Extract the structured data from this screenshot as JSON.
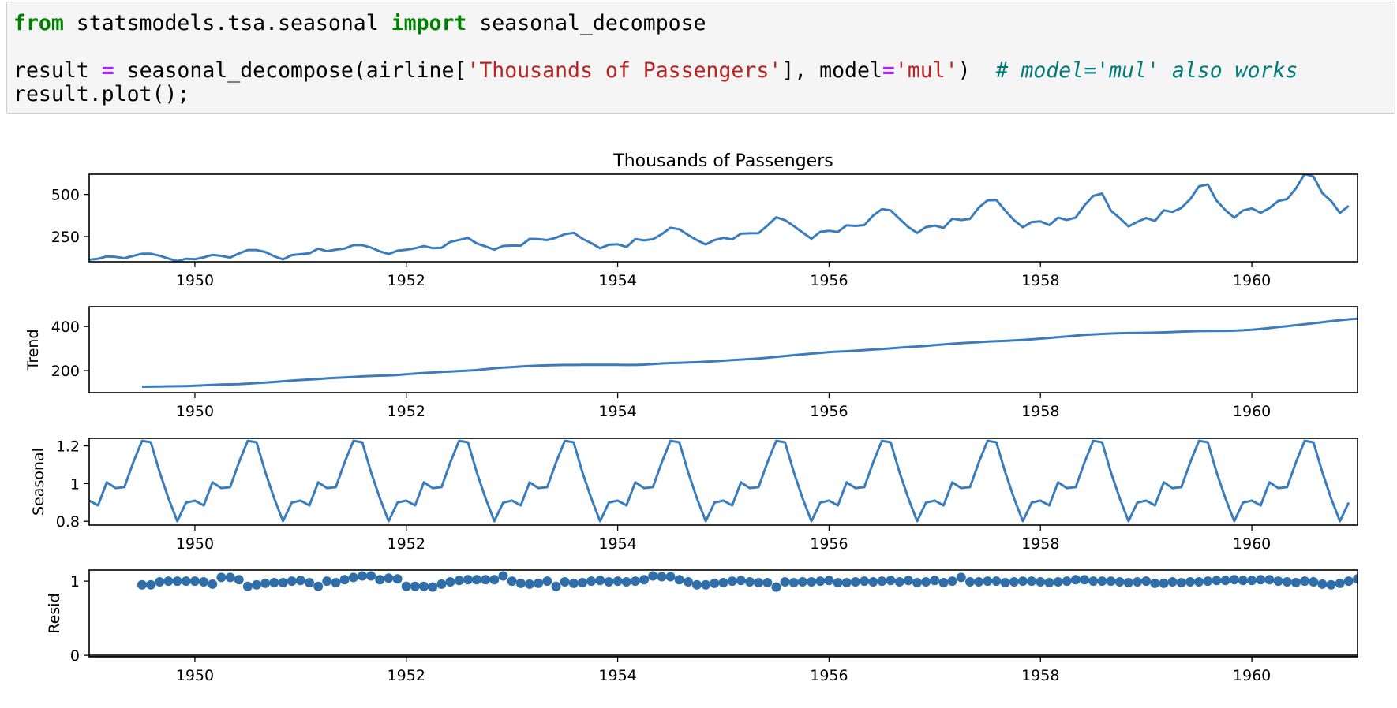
{
  "code": {
    "line1": {
      "kw1": "from",
      "t1": " statsmodels.tsa.seasonal ",
      "kw2": "import",
      "t2": " seasonal_decompose"
    },
    "line3": {
      "t1": "result ",
      "op1": "=",
      "t2": " seasonal_decompose(airline[",
      "s1": "'Thousands of Passengers'",
      "t3": "], model",
      "op2": "=",
      "s2": "'mul'",
      "t4": ")  ",
      "cmt": "# model='mul' also works"
    },
    "line4": {
      "t1": "result.plot();"
    }
  },
  "colors": {
    "line": "#3a7dbf",
    "dot": "#2f6ea8",
    "axis": "#000000"
  },
  "chart_data": [
    {
      "type": "line",
      "title": "Thousands of Passengers",
      "ylabel": "",
      "xlim": [
        1949.0,
        1961.0
      ],
      "ylim": [
        100,
        620
      ],
      "yticks": [
        250,
        500
      ],
      "xticks": [
        1950,
        1952,
        1954,
        1956,
        1958,
        1960
      ],
      "x_start": 1949.0,
      "x_step": 0.083333,
      "values": [
        112,
        118,
        132,
        129,
        121,
        135,
        148,
        148,
        136,
        119,
        104,
        118,
        115,
        126,
        141,
        135,
        125,
        149,
        170,
        170,
        158,
        133,
        114,
        140,
        145,
        150,
        178,
        163,
        172,
        178,
        199,
        199,
        184,
        162,
        146,
        166,
        171,
        180,
        193,
        181,
        183,
        218,
        230,
        242,
        209,
        191,
        172,
        194,
        196,
        196,
        236,
        235,
        229,
        243,
        264,
        272,
        237,
        211,
        180,
        201,
        204,
        188,
        235,
        227,
        234,
        264,
        302,
        293,
        259,
        229,
        203,
        229,
        242,
        233,
        267,
        269,
        270,
        315,
        364,
        347,
        312,
        274,
        237,
        278,
        284,
        277,
        317,
        313,
        318,
        374,
        413,
        405,
        355,
        306,
        271,
        306,
        315,
        301,
        356,
        348,
        355,
        422,
        465,
        467,
        404,
        347,
        305,
        336,
        340,
        318,
        362,
        348,
        363,
        435,
        491,
        505,
        404,
        359,
        310,
        337,
        360,
        342,
        406,
        396,
        420,
        472,
        548,
        559,
        463,
        407,
        362,
        405,
        417,
        391,
        419,
        461,
        472,
        535,
        622,
        606,
        508,
        461,
        390,
        432
      ]
    },
    {
      "type": "line",
      "title": "",
      "ylabel": "Trend",
      "xlim": [
        1949.0,
        1961.0
      ],
      "ylim": [
        100,
        490
      ],
      "yticks": [
        200,
        400
      ],
      "xticks": [
        1950,
        1952,
        1954,
        1956,
        1958,
        1960
      ],
      "x_start": 1949.5,
      "x_step": 0.083333,
      "values": [
        126.79,
        127.25,
        127.96,
        128.58,
        129.0,
        129.75,
        131.25,
        133.08,
        134.92,
        136.42,
        137.42,
        138.75,
        140.92,
        143.17,
        145.71,
        148.42,
        151.54,
        154.71,
        157.12,
        159.54,
        161.83,
        164.79,
        167.25,
        168.96,
        171.25,
        173.58,
        175.46,
        176.83,
        178.04,
        180.17,
        183.12,
        186.21,
        189.04,
        191.29,
        193.58,
        195.83,
        198.04,
        199.75,
        202.21,
        206.25,
        210.42,
        213.38,
        215.83,
        218.46,
        220.92,
        222.42,
        223.62,
        224.92,
        225.5,
        225.67,
        226.0,
        226.25,
        226.38,
        226.29,
        226.04,
        225.67,
        225.5,
        226.96,
        229.62,
        232.5,
        234.17,
        235.42,
        236.75,
        238.21,
        240.38,
        242.5,
        245.0,
        247.5,
        250.0,
        252.5,
        255.0,
        258.17,
        262.29,
        266.17,
        270.04,
        273.38,
        277.12,
        280.38,
        283.83,
        286.21,
        287.71,
        290.12,
        292.92,
        295.25,
        297.79,
        300.83,
        304.0,
        306.42,
        309.17,
        312.25,
        315.42,
        318.67,
        321.75,
        324.25,
        326.88,
        329.04,
        331.83,
        333.29,
        334.83,
        336.75,
        339.25,
        341.92,
        344.92,
        348.42,
        352.04,
        354.88,
        358.75,
        361.96,
        364.29,
        366.71,
        368.46,
        369.79,
        370.62,
        371.17,
        371.5,
        372.17,
        373.58,
        375.29,
        376.92,
        377.96,
        379.5,
        380.21,
        380.46,
        380.67,
        381.29,
        383.08,
        385.5,
        389.08,
        393.21,
        397.75,
        401.29,
        405.83,
        410.38,
        414.96,
        419.58,
        424.25,
        428.71,
        432.62,
        435.75,
        439.08,
        442.88,
        447.88,
        453.21,
        458.88,
        463.83,
        468.67,
        472.12,
        475.04
      ]
    },
    {
      "type": "line",
      "title": "",
      "ylabel": "Seasonal",
      "xlim": [
        1949.0,
        1961.0
      ],
      "ylim": [
        0.78,
        1.24
      ],
      "yticks": [
        0.8,
        1.0,
        1.2
      ],
      "xticks": [
        1950,
        1952,
        1954,
        1956,
        1958,
        1960
      ],
      "x_start": 1949.0,
      "x_step": 0.083333,
      "pattern": [
        0.91,
        0.884,
        1.007,
        0.976,
        0.981,
        1.112,
        1.227,
        1.219,
        1.06,
        0.922,
        0.801,
        0.899
      ],
      "cycles": 12
    },
    {
      "type": "scatter",
      "title": "",
      "ylabel": "Resid",
      "xlim": [
        1949.0,
        1961.0
      ],
      "ylim": [
        -0.02,
        1.15
      ],
      "yticks": [
        0,
        1
      ],
      "xticks": [
        1950,
        1952,
        1954,
        1956,
        1958,
        1960
      ],
      "baseline": 0,
      "x_start": 1949.5,
      "x_step": 0.083333,
      "values": [
        0.95,
        0.95,
        0.99,
        1.0,
        1.0,
        1.0,
        1.0,
        0.99,
        0.96,
        1.05,
        1.05,
        1.02,
        0.93,
        0.95,
        0.97,
        0.98,
        0.98,
        1.0,
        1.01,
        0.98,
        0.93,
        1.0,
        0.98,
        1.02,
        1.05,
        1.07,
        1.07,
        1.02,
        1.04,
        1.03,
        0.93,
        0.93,
        0.93,
        0.92,
        0.96,
        0.99,
        1.01,
        1.02,
        1.02,
        1.02,
        1.02,
        1.07,
        1.0,
        0.97,
        0.96,
        0.97,
        1.0,
        0.93,
        0.99,
        0.97,
        0.98,
        1.0,
        1.01,
        0.99,
        1.0,
        0.99,
        1.0,
        1.02,
        1.07,
        1.06,
        1.06,
        1.02,
        0.99,
        0.95,
        0.95,
        0.97,
        0.98,
        1.0,
        1.01,
        0.99,
        0.98,
        0.98,
        0.92,
        0.99,
        0.98,
        0.99,
        0.99,
        1.0,
        1.01,
        0.98,
        0.98,
        0.99,
        1.0,
        0.99,
        1.0,
        1.01,
        0.99,
        1.01,
        0.98,
        0.99,
        1.01,
        0.98,
        1.0,
        1.05,
        0.99,
        0.99,
        1.0,
        1.0,
        0.98,
        0.99,
        1.0,
        1.0,
        0.99,
        0.98,
        0.99,
        1.0,
        1.02,
        1.02,
        1.0,
        1.0,
        1.0,
        0.99,
        0.98,
        0.99,
        1.0,
        0.97,
        0.97,
        0.99,
        0.98,
        0.99,
        0.99,
        1.0,
        1.01,
        1.01,
        1.02,
        1.01,
        1.01,
        1.02,
        1.02,
        1.0,
        0.99,
        0.98,
        1.0,
        0.99,
        0.96,
        0.95,
        0.97,
        1.0,
        1.03,
        1.03,
        1.05,
        1.06,
        0.99
      ]
    }
  ]
}
